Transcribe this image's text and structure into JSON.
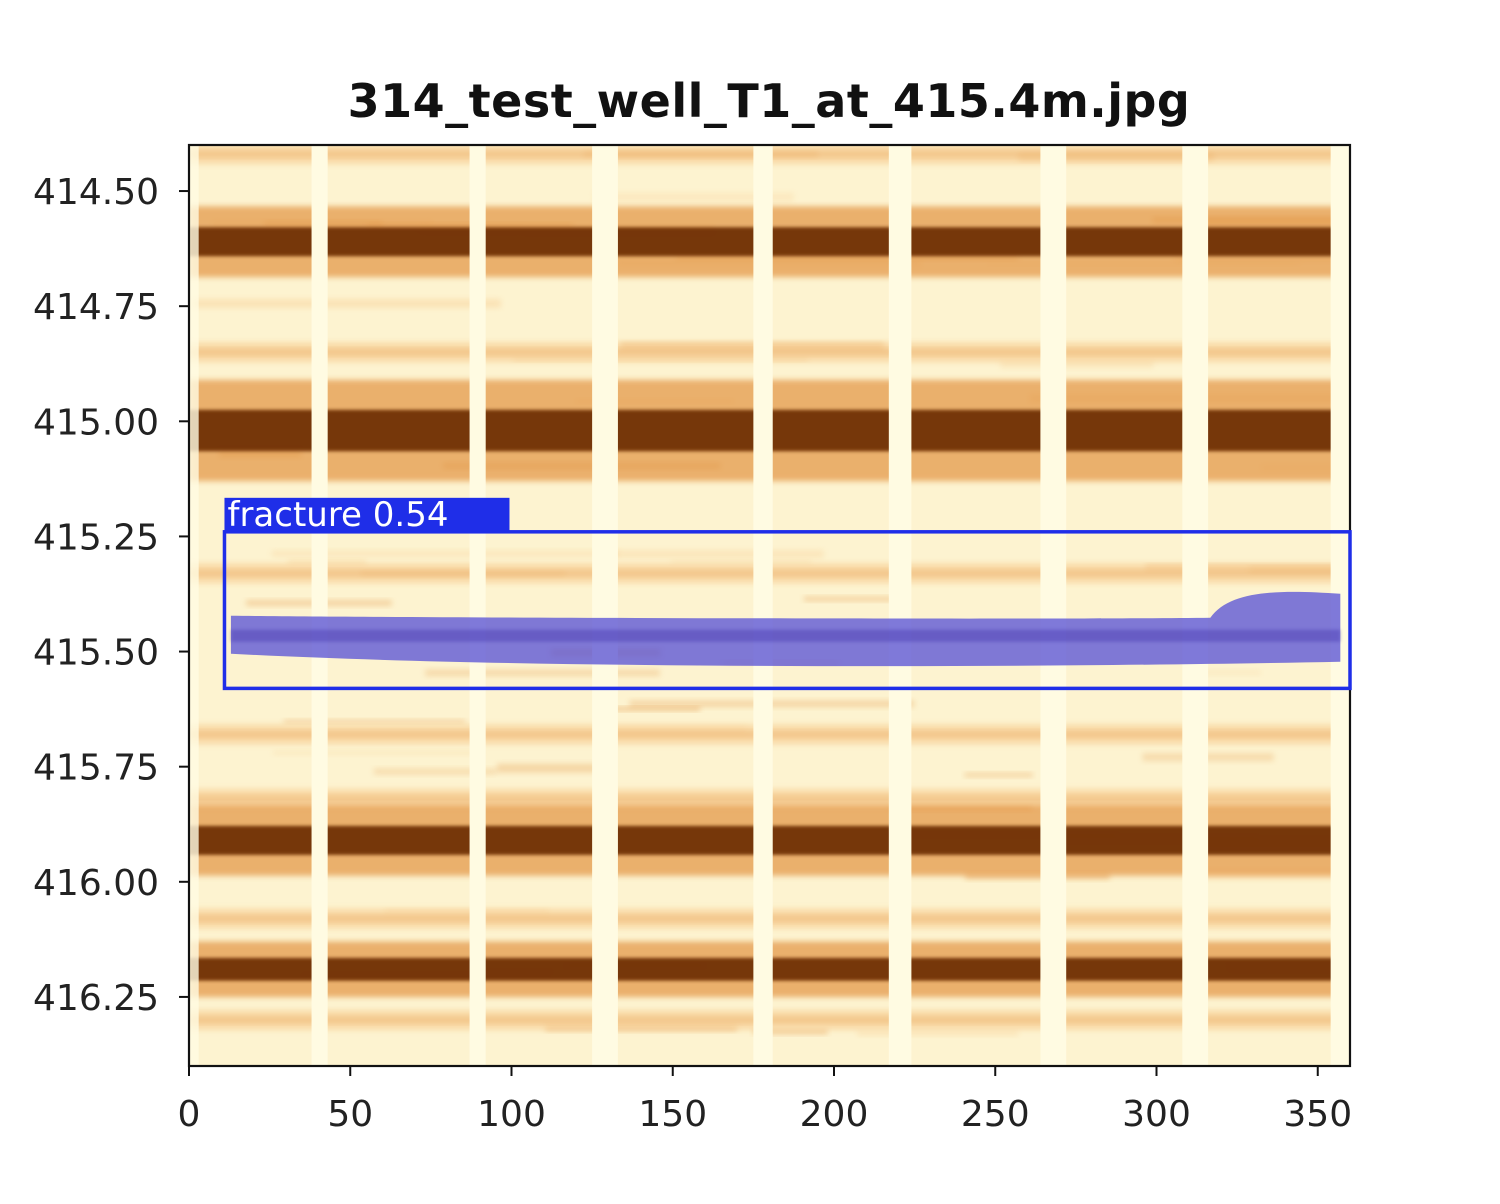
{
  "chart_data": {
    "type": "heatmap",
    "title": "314_test_well_T1_at_415.4m.jpg",
    "xlabel": "",
    "ylabel": "",
    "xlim": [
      0,
      360
    ],
    "ylim": [
      416.4,
      414.4
    ],
    "x_ticks": [
      0,
      50,
      100,
      150,
      200,
      250,
      300,
      350
    ],
    "x_tick_labels": [
      "0",
      "50",
      "100",
      "150",
      "200",
      "250",
      "300",
      "350"
    ],
    "y_ticks": [
      414.5,
      414.75,
      415.0,
      415.25,
      415.5,
      415.75,
      416.0,
      416.25
    ],
    "y_tick_labels": [
      "414.50",
      "414.75",
      "415.00",
      "415.25",
      "415.50",
      "415.75",
      "416.00",
      "416.25"
    ],
    "grid": false,
    "colormap": "YlOrBr",
    "colors": {
      "background": "#fdf3d0",
      "light_band": "#f8d29a",
      "mid_band": "#e49a4c",
      "dark_band": "#6b2a06",
      "pad_gap": "#fffbe2",
      "fracture_fill": "#5b55d6",
      "detection_box": "#1f2ee8"
    },
    "pad_gaps_deg": [
      [
        38,
        43
      ],
      [
        87,
        92
      ],
      [
        125,
        133
      ],
      [
        175,
        181
      ],
      [
        217,
        224
      ],
      [
        264,
        272
      ],
      [
        308,
        316
      ],
      [
        354,
        360
      ]
    ],
    "dark_layers_m": [
      {
        "center": 414.61,
        "thickness": 0.07
      },
      {
        "center": 415.02,
        "thickness": 0.1
      },
      {
        "center": 415.91,
        "thickness": 0.07
      },
      {
        "center": 416.19,
        "thickness": 0.055
      }
    ],
    "faint_layers_m": [
      414.42,
      414.85,
      415.33,
      415.68,
      415.82,
      416.08,
      416.3
    ],
    "detections": [
      {
        "label": "fracture",
        "score": "0.54",
        "caption": "fracture  0.54",
        "x_range": [
          11,
          360
        ],
        "depth_range": [
          415.24,
          415.58
        ],
        "fracture_trace_depth": 415.47
      }
    ]
  }
}
